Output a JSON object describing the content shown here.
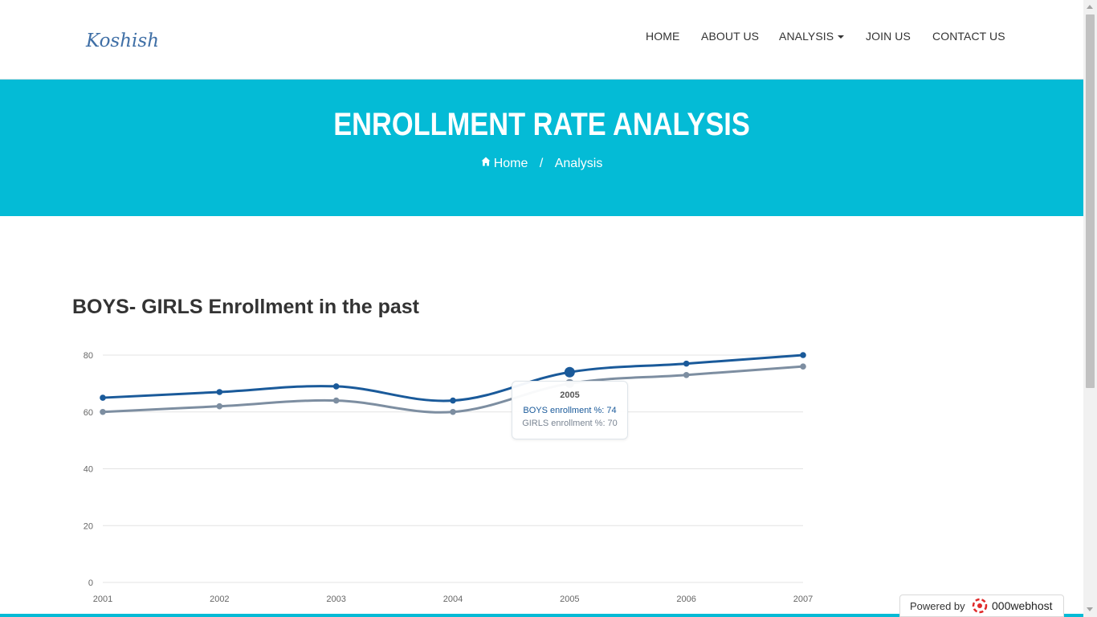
{
  "brand": "Koshish",
  "nav": {
    "home": "HOME",
    "about": "ABOUT US",
    "analysis": "ANALYSIS",
    "join": "JOIN US",
    "contact": "CONTACT US"
  },
  "hero": {
    "title": "ENROLLMENT RATE ANALYSIS",
    "breadcrumb_home": "Home",
    "breadcrumb_sep": "/",
    "breadcrumb_current": "Analysis"
  },
  "section": {
    "title": "BOYS- GIRLS Enrollment in the past"
  },
  "colors": {
    "accent": "#04bbd6",
    "boys": "#1a5a9a",
    "girls": "#7d8ea1"
  },
  "chart_data": {
    "type": "line",
    "x": [
      "2001",
      "2002",
      "2003",
      "2004",
      "2005",
      "2006",
      "2007"
    ],
    "series": [
      {
        "name": "BOYS enrollment %",
        "values": [
          65,
          67,
          69,
          64,
          74,
          77,
          80
        ]
      },
      {
        "name": "GIRLS enrollment %",
        "values": [
          60,
          62,
          64,
          60,
          70,
          73,
          76
        ]
      }
    ],
    "yticks": [
      "0",
      "20",
      "40",
      "60",
      "80"
    ],
    "ylim": [
      0,
      80
    ],
    "grid": true,
    "highlighted_index": 4
  },
  "tooltip": {
    "title": "2005",
    "boys": "BOYS enrollment %: 74",
    "girls": "GIRLS enrollment %: 70"
  },
  "powered_by": {
    "label": "Powered by",
    "brand": "000webhost"
  }
}
